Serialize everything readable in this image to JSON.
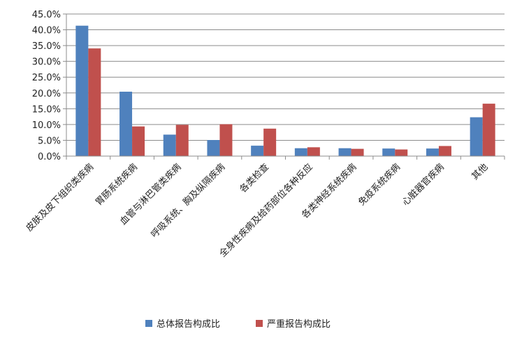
{
  "chart_data": {
    "type": "bar",
    "categories": [
      "皮肤及皮下组织类疾病",
      "胃肠系统疾病",
      "血管与淋巴管类疾病",
      "呼吸系统、胸及纵隔疾病",
      "各类检查",
      "全身性疾病及给药部位各种反应",
      "各类神经系统疾病",
      "免疫系统疾病",
      "心脏器官疾病",
      "其他"
    ],
    "series": [
      {
        "name": "总体报告构成比",
        "color": "#4F81BD",
        "values": [
          41.3,
          20.4,
          6.8,
          5.1,
          3.3,
          2.5,
          2.5,
          2.4,
          2.4,
          12.3
        ]
      },
      {
        "name": "严重报告构成比",
        "color": "#C0504D",
        "values": [
          34.1,
          9.4,
          9.9,
          10.1,
          8.7,
          2.8,
          2.3,
          2.1,
          3.2,
          16.6
        ]
      }
    ],
    "ylim": [
      0,
      45
    ],
    "yticks": [
      "0.0%",
      "5.0%",
      "10.0%",
      "15.0%",
      "20.0%",
      "25.0%",
      "30.0%",
      "35.0%",
      "40.0%",
      "45.0%"
    ],
    "grid": true,
    "legend": "bottom"
  }
}
